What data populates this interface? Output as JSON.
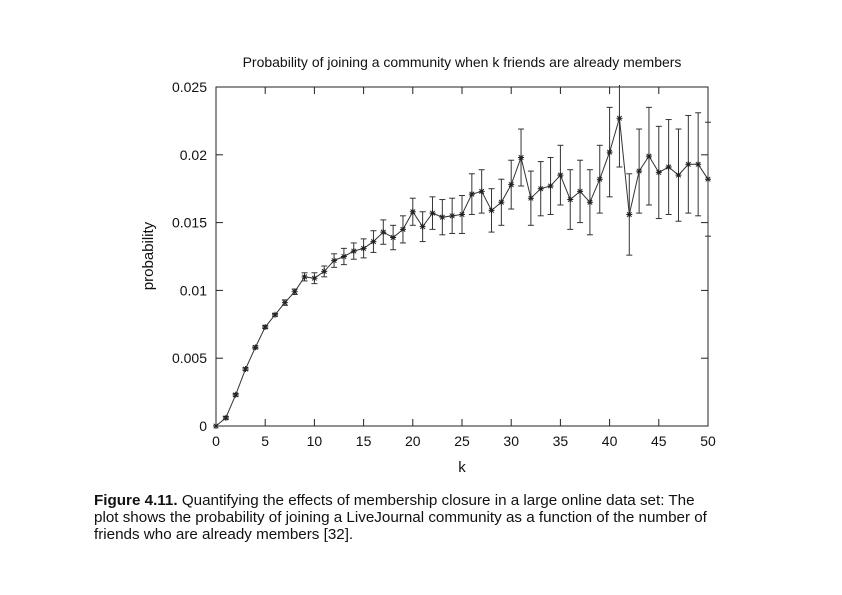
{
  "chart_data": {
    "type": "line",
    "title": "Probability of joining a community when k friends are already members",
    "xlabel": "k",
    "ylabel": "probability",
    "xlim": [
      0,
      50
    ],
    "ylim": [
      0,
      0.025
    ],
    "xticks": [
      "0",
      "5",
      "10",
      "15",
      "20",
      "25",
      "30",
      "35",
      "40",
      "45",
      "50"
    ],
    "yticks": [
      "0",
      "0.005",
      "0.01",
      "0.015",
      "0.02",
      "0.025"
    ],
    "grid": false,
    "legend": "none",
    "marker": "asterisk",
    "error_bars": true,
    "series": [
      {
        "x": [
          0,
          1,
          2,
          3,
          4,
          5,
          6,
          7,
          8,
          9,
          10,
          11,
          12,
          13,
          14,
          15,
          16,
          17,
          18,
          19,
          20,
          21,
          22,
          23,
          24,
          25,
          26,
          27,
          28,
          29,
          30,
          31,
          32,
          33,
          34,
          35,
          36,
          37,
          38,
          39,
          40,
          41,
          42,
          43,
          44,
          45,
          46,
          47,
          48,
          49,
          50
        ],
        "y": [
          0,
          0.0006,
          0.0023,
          0.0042,
          0.0058,
          0.0073,
          0.0082,
          0.0091,
          0.0099,
          0.011,
          0.0109,
          0.0114,
          0.0122,
          0.0125,
          0.0129,
          0.0131,
          0.0136,
          0.0143,
          0.0139,
          0.0145,
          0.0158,
          0.0147,
          0.0157,
          0.0154,
          0.0155,
          0.0156,
          0.0171,
          0.0173,
          0.0159,
          0.0165,
          0.0178,
          0.0198,
          0.0168,
          0.0175,
          0.0177,
          0.0185,
          0.0167,
          0.0173,
          0.0165,
          0.0182,
          0.0202,
          0.0227,
          0.0156,
          0.0188,
          0.0199,
          0.0187,
          0.0191,
          0.0185,
          0.0193,
          0.0193,
          0.0182
        ],
        "err": [
          0,
          0.0001,
          0.0001,
          0.0001,
          0.0001,
          0.0001,
          0.0001,
          0.0002,
          0.0002,
          0.0003,
          0.0004,
          0.0004,
          0.0005,
          0.0006,
          0.0006,
          0.0007,
          0.0008,
          0.0009,
          0.0009,
          0.001,
          0.001,
          0.0011,
          0.0012,
          0.0013,
          0.0013,
          0.0014,
          0.0015,
          0.0016,
          0.0016,
          0.0017,
          0.0018,
          0.0021,
          0.002,
          0.002,
          0.0021,
          0.0022,
          0.0022,
          0.0023,
          0.0024,
          0.0025,
          0.0033,
          0.0036,
          0.003,
          0.0031,
          0.0036,
          0.0034,
          0.0035,
          0.0034,
          0.0036,
          0.0038,
          0.0042
        ]
      }
    ]
  },
  "caption": {
    "label": "Figure 4.11.",
    "lines": [
      "Quantifying the effects of membership closure in a large online data set: The",
      "plot shows the probability of joining a LiveJournal community as a function of the number of",
      "friends who are already members [32]."
    ]
  }
}
